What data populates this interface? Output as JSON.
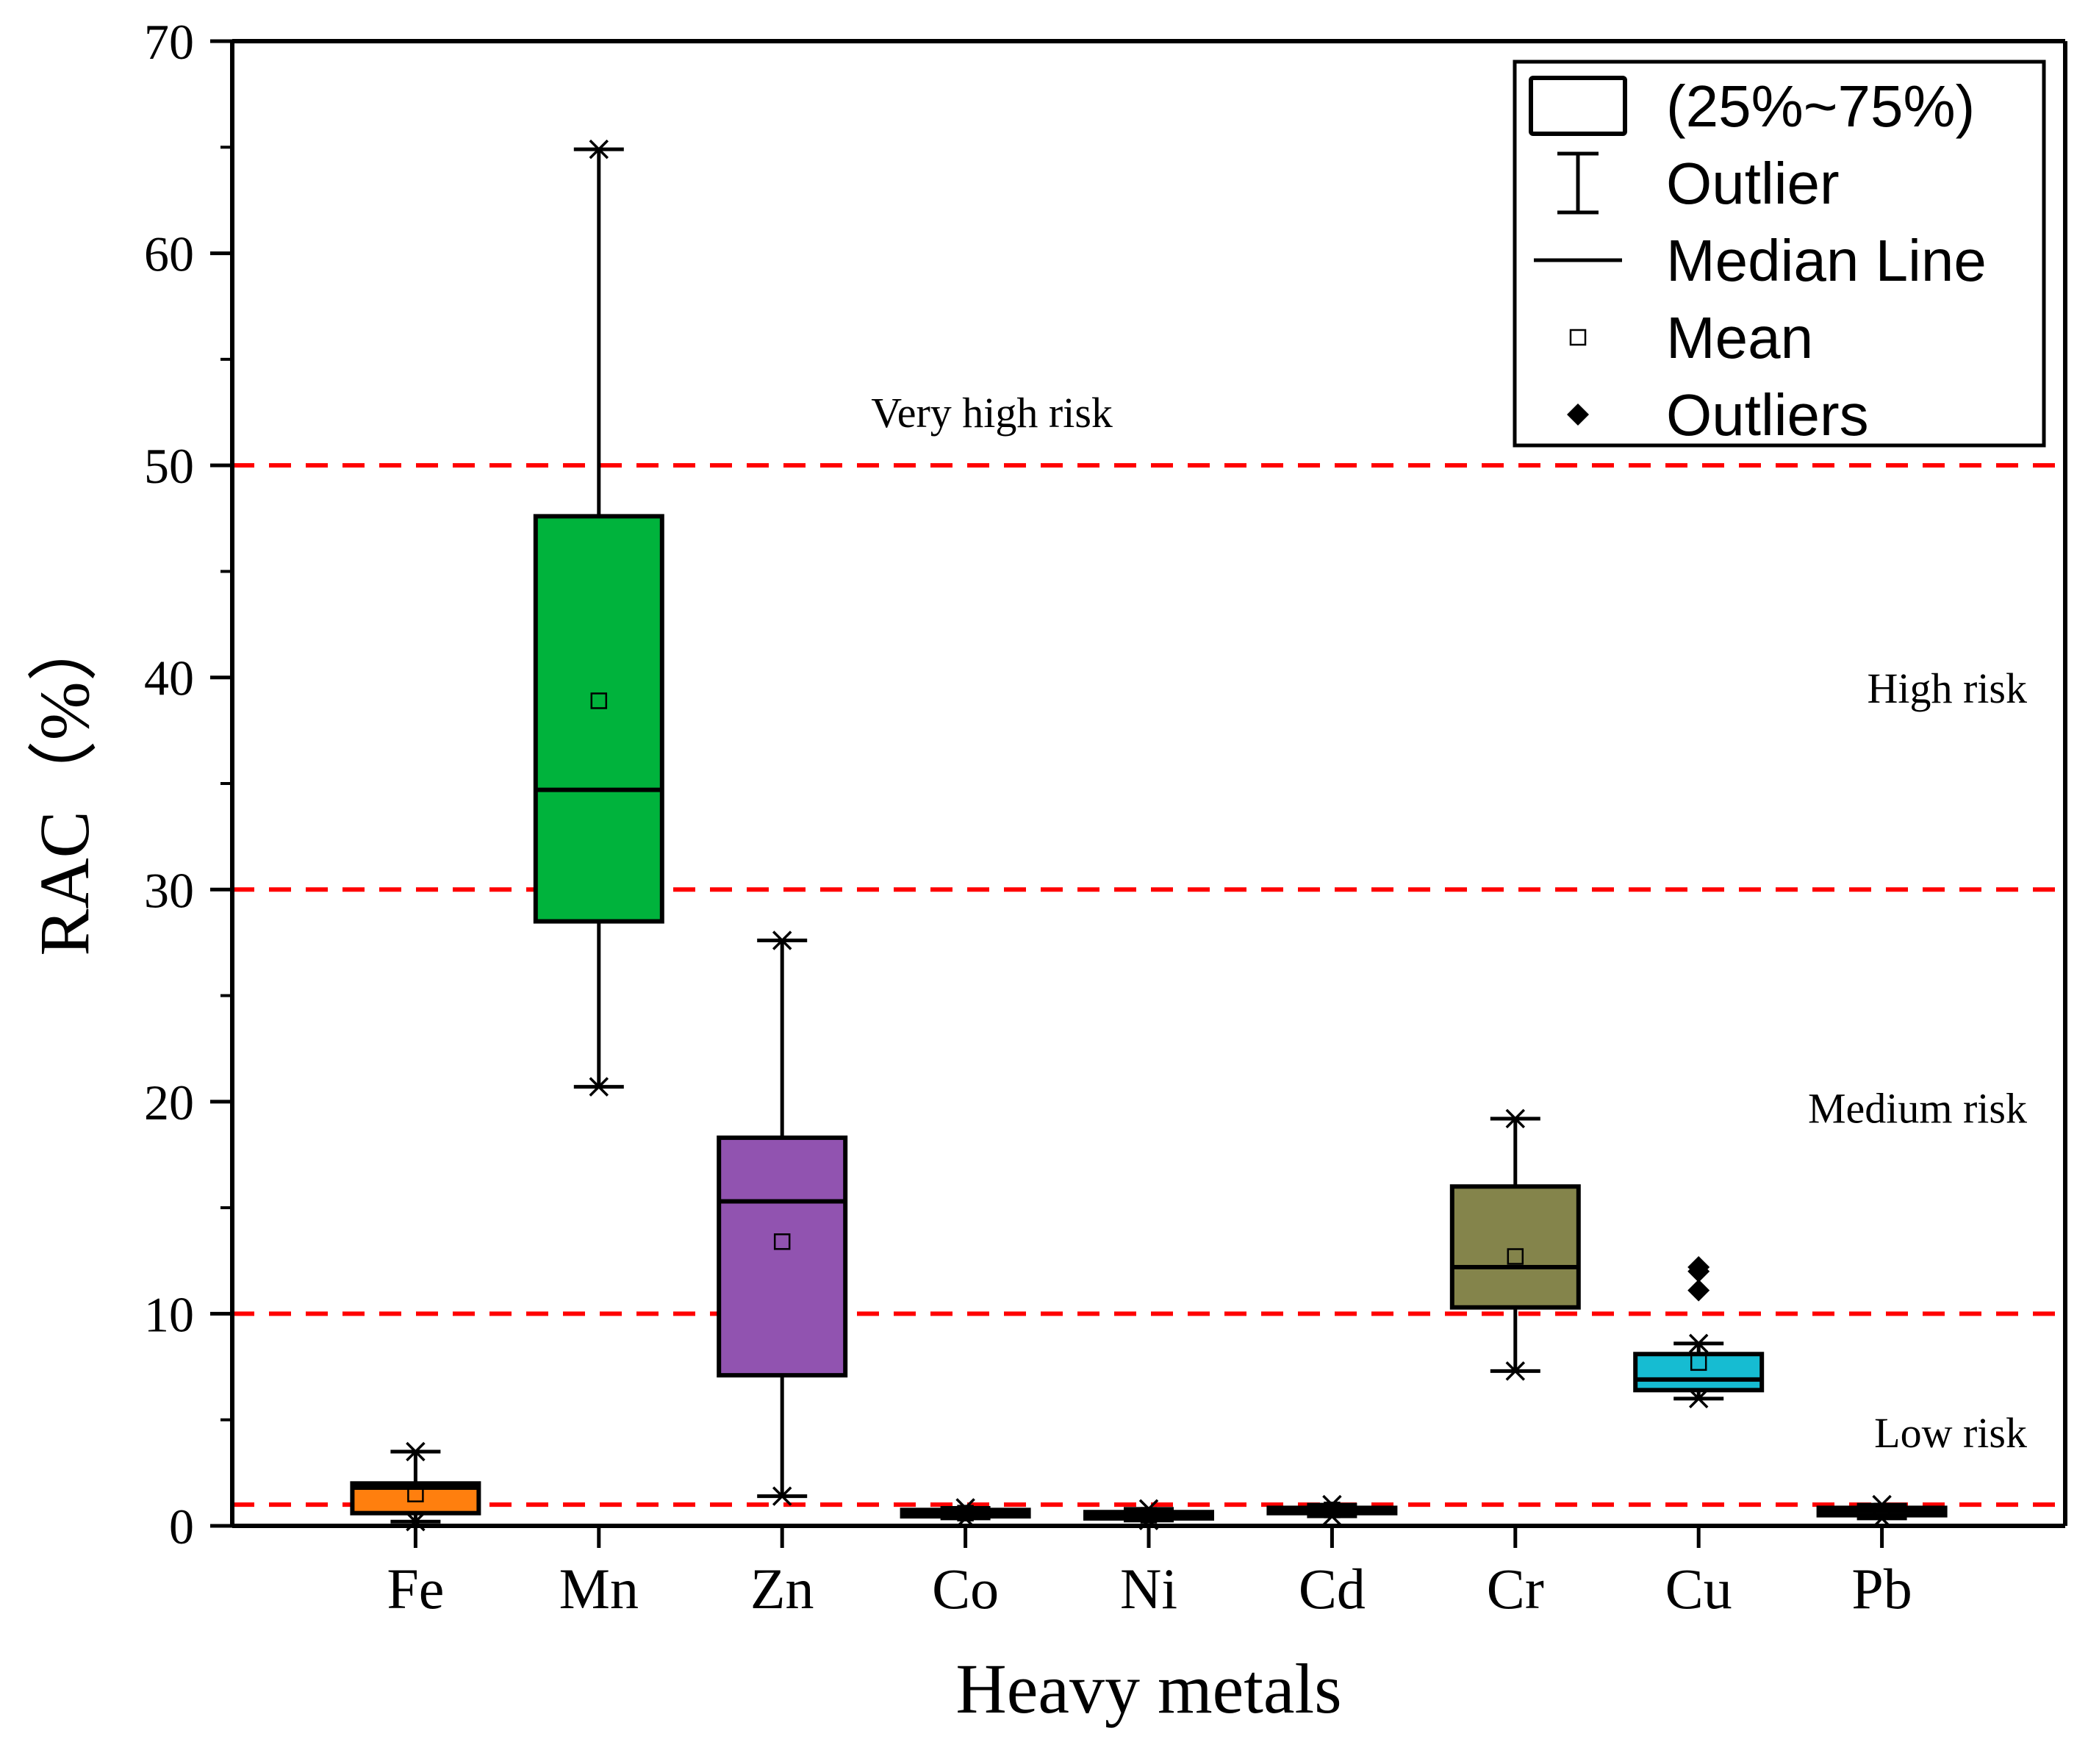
{
  "chart_data": {
    "type": "box",
    "xlabel": "Heavy metals",
    "ylabel": "RAC（%）",
    "ylim": [
      0,
      70
    ],
    "yticks": [
      0,
      10,
      20,
      30,
      40,
      50,
      60,
      70
    ],
    "categories": [
      "Fe",
      "Mn",
      "Zn",
      "Co",
      "Ni",
      "Cd",
      "Cr",
      "Cu",
      "Pb"
    ],
    "boxes": [
      {
        "name": "Fe",
        "color": "#FF7F0E",
        "q1": 0.6,
        "median": 1.8,
        "q3": 2.0,
        "mean": 1.5,
        "whisker_low": 0.2,
        "whisker_high": 3.5,
        "outliers": []
      },
      {
        "name": "Mn",
        "color": "#00B33C",
        "q1": 28.5,
        "median": 34.7,
        "q3": 47.6,
        "mean": 38.9,
        "whisker_low": 20.7,
        "whisker_high": 64.9,
        "outliers": []
      },
      {
        "name": "Zn",
        "color": "#9153B0",
        "q1": 7.1,
        "median": 15.3,
        "q3": 18.3,
        "mean": 13.4,
        "whisker_low": 1.4,
        "whisker_high": 27.6,
        "outliers": []
      },
      {
        "name": "Co",
        "color": "#333333",
        "q1": 0.45,
        "median": 0.6,
        "q3": 0.75,
        "mean": 0.6,
        "whisker_low": 0.35,
        "whisker_high": 0.85,
        "outliers": []
      },
      {
        "name": "Ni",
        "color": "#333333",
        "q1": 0.35,
        "median": 0.5,
        "q3": 0.65,
        "mean": 0.5,
        "whisker_low": 0.25,
        "whisker_high": 0.8,
        "outliers": []
      },
      {
        "name": "Cd",
        "color": "#333333",
        "q1": 0.6,
        "median": 0.75,
        "q3": 0.85,
        "mean": 0.75,
        "whisker_low": 0.45,
        "whisker_high": 1.0,
        "outliers": []
      },
      {
        "name": "Cr",
        "color": "#84844B",
        "q1": 10.3,
        "median": 12.2,
        "q3": 16.0,
        "mean": 12.7,
        "whisker_low": 7.3,
        "whisker_high": 19.2,
        "outliers": []
      },
      {
        "name": "Cu",
        "color": "#16BCD2",
        "q1": 6.4,
        "median": 6.9,
        "q3": 8.1,
        "mean": 7.7,
        "whisker_low": 6.0,
        "whisker_high": 8.6,
        "outliers": [
          11.1,
          12.0,
          12.2
        ]
      },
      {
        "name": "Pb",
        "color": "#333333",
        "q1": 0.5,
        "median": 0.7,
        "q3": 0.85,
        "mean": 0.7,
        "whisker_low": 0.35,
        "whisker_high": 1.0,
        "outliers": []
      }
    ],
    "reference_lines": [
      {
        "value": 1,
        "color": "#FF0000",
        "style": "dashed"
      },
      {
        "value": 10,
        "color": "#FF0000",
        "style": "dashed"
      },
      {
        "value": 30,
        "color": "#FF0000",
        "style": "dashed"
      },
      {
        "value": 50,
        "color": "#FF0000",
        "style": "dashed"
      }
    ],
    "annotations": [
      {
        "text": "Very high risk",
        "y": 52.5,
        "anchor": "middle",
        "category": "Co"
      },
      {
        "text": "High risk",
        "y": 39.5,
        "anchor": "end"
      },
      {
        "text": "Medium risk",
        "y": 19.7,
        "anchor": "end"
      },
      {
        "text": "Low risk",
        "y": 4.4,
        "anchor": "end"
      }
    ],
    "legend": {
      "position": "top-right",
      "entries": [
        {
          "symbol": "box",
          "label": "(25%~75%)"
        },
        {
          "symbol": "whisker",
          "label": "Outlier"
        },
        {
          "symbol": "line",
          "label": "Median Line"
        },
        {
          "symbol": "open-square",
          "label": "Mean"
        },
        {
          "symbol": "filled-diamond",
          "label": "Outliers"
        }
      ]
    }
  }
}
